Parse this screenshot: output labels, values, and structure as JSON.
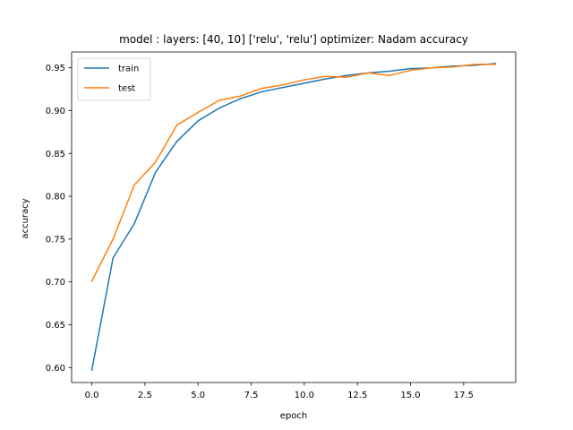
{
  "chart_data": {
    "type": "line",
    "title": "model : layers: [40, 10] ['relu', 'relu'] optimizer: Nadam accuracy",
    "xlabel": "epoch",
    "ylabel": "accuracy",
    "xlim": [
      -0.95,
      19.95
    ],
    "ylim": [
      0.5825,
      0.9685
    ],
    "xticks": [
      0.0,
      2.5,
      5.0,
      7.5,
      10.0,
      12.5,
      15.0,
      17.5
    ],
    "xtick_labels": [
      "0.0",
      "2.5",
      "5.0",
      "7.5",
      "10.0",
      "12.5",
      "15.0",
      "17.5"
    ],
    "yticks": [
      0.6,
      0.65,
      0.7,
      0.75,
      0.8,
      0.85,
      0.9,
      0.95
    ],
    "ytick_labels": [
      "0.60",
      "0.65",
      "0.70",
      "0.75",
      "0.80",
      "0.85",
      "0.90",
      "0.95"
    ],
    "grid": false,
    "legend_position": "top-left",
    "x": [
      0,
      1,
      2,
      3,
      4,
      5,
      6,
      7,
      8,
      9,
      10,
      11,
      12,
      13,
      14,
      15,
      16,
      17,
      18,
      19
    ],
    "series": [
      {
        "name": "train",
        "color": "#1f77b4",
        "values": [
          0.597,
          0.728,
          0.768,
          0.828,
          0.864,
          0.888,
          0.903,
          0.914,
          0.922,
          0.927,
          0.932,
          0.937,
          0.941,
          0.944,
          0.946,
          0.949,
          0.95,
          0.952,
          0.953,
          0.955
        ]
      },
      {
        "name": "test",
        "color": "#ff7f0e",
        "values": [
          0.701,
          0.75,
          0.813,
          0.84,
          0.883,
          0.898,
          0.912,
          0.917,
          0.926,
          0.93,
          0.936,
          0.94,
          0.939,
          0.944,
          0.941,
          0.947,
          0.95,
          0.951,
          0.954,
          0.954
        ]
      }
    ]
  }
}
